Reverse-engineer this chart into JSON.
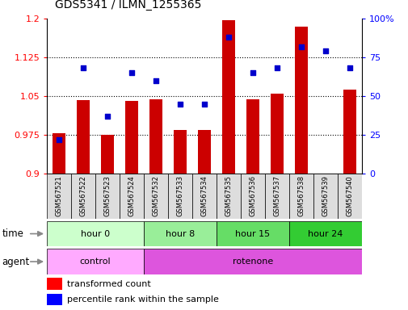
{
  "title": "GDS5341 / ILMN_1255365",
  "samples": [
    "GSM567521",
    "GSM567522",
    "GSM567523",
    "GSM567524",
    "GSM567532",
    "GSM567533",
    "GSM567534",
    "GSM567535",
    "GSM567536",
    "GSM567537",
    "GSM567538",
    "GSM567539",
    "GSM567540"
  ],
  "bar_values": [
    0.978,
    1.042,
    0.975,
    1.04,
    1.044,
    0.985,
    0.984,
    1.197,
    1.044,
    1.054,
    1.185,
    0.9,
    1.062
  ],
  "scatter_values": [
    22,
    68,
    37,
    65,
    60,
    45,
    45,
    88,
    65,
    68,
    82,
    79,
    68
  ],
  "ylim_left": [
    0.9,
    1.2
  ],
  "ylim_right": [
    0,
    100
  ],
  "yticks_left": [
    0.9,
    0.975,
    1.05,
    1.125,
    1.2
  ],
  "yticks_right": [
    0,
    25,
    50,
    75,
    100
  ],
  "ytick_labels_left": [
    "0.9",
    "0.975",
    "1.05",
    "1.125",
    "1.2"
  ],
  "ytick_labels_right": [
    "0",
    "25",
    "50",
    "75",
    "100%"
  ],
  "bar_color": "#cc0000",
  "scatter_color": "#0000cc",
  "bar_base": 0.9,
  "time_groups": [
    {
      "label": "hour 0",
      "start": 0,
      "end": 4,
      "color": "#ccffcc"
    },
    {
      "label": "hour 8",
      "start": 4,
      "end": 7,
      "color": "#99ee99"
    },
    {
      "label": "hour 15",
      "start": 7,
      "end": 10,
      "color": "#66dd66"
    },
    {
      "label": "hour 24",
      "start": 10,
      "end": 13,
      "color": "#33cc33"
    }
  ],
  "agent_groups": [
    {
      "label": "control",
      "start": 0,
      "end": 4,
      "color": "#ffaaff"
    },
    {
      "label": "rotenone",
      "start": 4,
      "end": 13,
      "color": "#dd55dd"
    }
  ],
  "time_label": "time",
  "agent_label": "agent",
  "legend_bar": "transformed count",
  "legend_scatter": "percentile rank within the sample",
  "sample_cell_color": "#dddddd",
  "plot_bg": "#ffffff",
  "fig_bg": "#ffffff"
}
